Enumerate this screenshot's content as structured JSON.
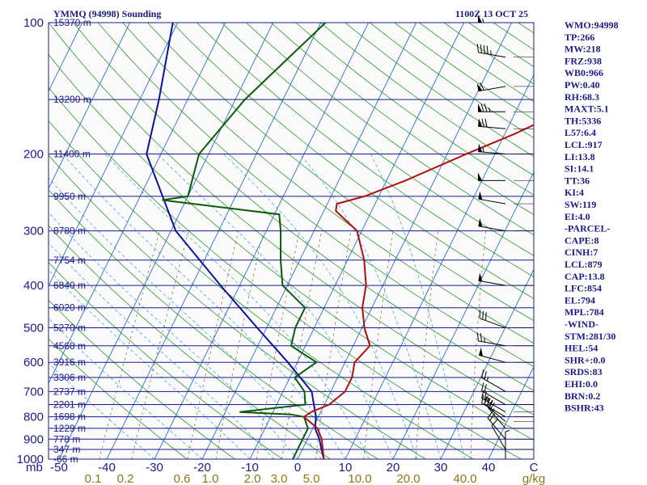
{
  "chart_data": {
    "type": "skew-t",
    "title_left": "YMMQ (94998) Sounding",
    "title_right": "1100Z 13 OCT 25",
    "pressure_unit_label": "mb",
    "pressure_levels": [
      100,
      200,
      300,
      400,
      500,
      600,
      700,
      800,
      900,
      1000
    ],
    "height_labels": [
      {
        "p": 100,
        "label": "15370 m"
      },
      {
        "p": 150,
        "label": "13200 m"
      },
      {
        "p": 200,
        "label": "11400 m"
      },
      {
        "p": 250,
        "label": "9950 m"
      },
      {
        "p": 300,
        "label": "8780 m"
      },
      {
        "p": 350,
        "label": "7754 m"
      },
      {
        "p": 400,
        "label": "6840 m"
      },
      {
        "p": 450,
        "label": "6020 m"
      },
      {
        "p": 500,
        "label": "5270 m"
      },
      {
        "p": 550,
        "label": "4568 m"
      },
      {
        "p": 600,
        "label": "3916 m"
      },
      {
        "p": 650,
        "label": "3306 m"
      },
      {
        "p": 700,
        "label": "2737 m"
      },
      {
        "p": 750,
        "label": "2201 m"
      },
      {
        "p": 800,
        "label": "1698 m"
      },
      {
        "p": 850,
        "label": "1229 m"
      },
      {
        "p": 900,
        "label": "778 m"
      },
      {
        "p": 950,
        "label": "347 m"
      },
      {
        "p": 1000,
        "label": "-66 m"
      }
    ],
    "temp_ticks": [
      -50,
      -40,
      -30,
      -20,
      -10,
      0,
      10,
      20,
      30,
      40
    ],
    "temp_tick_end_label": "C",
    "mixing_ratio_ticks": [
      "0.1",
      "0.2",
      "0.6",
      "1.0",
      "2.0",
      "3.0",
      "5.0",
      "10.0",
      "20.0",
      "40.0"
    ],
    "mixing_ratio_unit": "g/kg",
    "temperature_profile": [
      {
        "p": 100,
        "t": 50
      },
      {
        "p": 130,
        "t": 34
      },
      {
        "p": 150,
        "t": 24
      },
      {
        "p": 180,
        "t": 12
      },
      {
        "p": 200,
        "t": 4
      },
      {
        "p": 230,
        "t": -6
      },
      {
        "p": 250,
        "t": -13
      },
      {
        "p": 260,
        "t": -18
      },
      {
        "p": 270,
        "t": -17.5
      },
      {
        "p": 300,
        "t": -11
      },
      {
        "p": 350,
        "t": -6.5
      },
      {
        "p": 400,
        "t": -3.5
      },
      {
        "p": 450,
        "t": -2
      },
      {
        "p": 500,
        "t": 0.5
      },
      {
        "p": 550,
        "t": 3.5
      },
      {
        "p": 600,
        "t": 2
      },
      {
        "p": 650,
        "t": 3
      },
      {
        "p": 700,
        "t": 3
      },
      {
        "p": 750,
        "t": 1
      },
      {
        "p": 780,
        "t": -2
      },
      {
        "p": 800,
        "t": -3
      },
      {
        "p": 850,
        "t": 1
      },
      {
        "p": 900,
        "t": 3
      },
      {
        "p": 1000,
        "t": 5.5
      }
    ],
    "dewpoint_profile": [
      {
        "p": 100,
        "td": -39
      },
      {
        "p": 150,
        "td": -48
      },
      {
        "p": 200,
        "td": -52
      },
      {
        "p": 250,
        "td": -50
      },
      {
        "p": 255,
        "td": -55
      },
      {
        "p": 275,
        "td": -29
      },
      {
        "p": 300,
        "td": -27
      },
      {
        "p": 350,
        "td": -24
      },
      {
        "p": 400,
        "td": -21
      },
      {
        "p": 450,
        "td": -14
      },
      {
        "p": 500,
        "td": -14
      },
      {
        "p": 550,
        "td": -13
      },
      {
        "p": 600,
        "td": -6
      },
      {
        "p": 650,
        "td": -9
      },
      {
        "p": 700,
        "td": -5.5
      },
      {
        "p": 750,
        "td": -4
      },
      {
        "p": 780,
        "td": -17
      },
      {
        "p": 790,
        "td": -6
      },
      {
        "p": 800,
        "td": -3
      },
      {
        "p": 850,
        "td": -1
      },
      {
        "p": 900,
        "td": -1
      },
      {
        "p": 1000,
        "td": -1
      }
    ],
    "parcel_path": [
      {
        "p": 100,
        "t": -71
      },
      {
        "p": 150,
        "t": -66
      },
      {
        "p": 200,
        "t": -63
      },
      {
        "p": 300,
        "t": -49
      },
      {
        "p": 400,
        "t": -34
      },
      {
        "p": 500,
        "t": -22
      },
      {
        "p": 600,
        "t": -12
      },
      {
        "p": 700,
        "t": -4
      },
      {
        "p": 800,
        "t": -0.5
      },
      {
        "p": 850,
        "t": 0.5
      },
      {
        "p": 900,
        "t": 2.5
      },
      {
        "p": 950,
        "t": 4
      },
      {
        "p": 1000,
        "t": 5.5
      }
    ],
    "wind_barbs": [
      {
        "p": 100,
        "dir": 270,
        "spd": 55
      },
      {
        "p": 120,
        "dir": 280,
        "spd": 45
      },
      {
        "p": 140,
        "dir": 260,
        "spd": 60
      },
      {
        "p": 160,
        "dir": 270,
        "spd": 75
      },
      {
        "p": 175,
        "dir": 275,
        "spd": 70
      },
      {
        "p": 200,
        "dir": 275,
        "spd": 55
      },
      {
        "p": 230,
        "dir": 270,
        "spd": 50
      },
      {
        "p": 260,
        "dir": 280,
        "spd": 50
      },
      {
        "p": 300,
        "dir": 280,
        "spd": 50
      },
      {
        "p": 400,
        "dir": 280,
        "spd": 50
      },
      {
        "p": 500,
        "dir": 290,
        "spd": 30
      },
      {
        "p": 550,
        "dir": 280,
        "spd": 25
      },
      {
        "p": 600,
        "dir": 285,
        "spd": 50
      },
      {
        "p": 700,
        "dir": 300,
        "spd": 25
      },
      {
        "p": 750,
        "dir": 300,
        "spd": 20
      },
      {
        "p": 780,
        "dir": 300,
        "spd": 25
      },
      {
        "p": 800,
        "dir": 300,
        "spd": 30
      },
      {
        "p": 820,
        "dir": 310,
        "spd": 30
      },
      {
        "p": 850,
        "dir": 320,
        "spd": 25
      },
      {
        "p": 900,
        "dir": 320,
        "spd": 20
      },
      {
        "p": 950,
        "dir": 330,
        "spd": 10
      },
      {
        "p": 1000,
        "dir": 360,
        "spd": 5
      }
    ]
  },
  "indices": [
    "WMO:94998",
    "TP:266",
    "MW:218",
    "FRZ:938",
    "WB0:966",
    "PW:0.40",
    "RH:68.3",
    "MAXT:5.1",
    "TH:5336",
    "L57:6.4",
    "LCL:917",
    "LI:13.8",
    "SI:14.1",
    "TT:36",
    "KI:4",
    "SW:119",
    "EI:4.0",
    "-PARCEL-",
    "CAPE:8",
    "CINH:7",
    "LCL:879",
    "CAP:13.8",
    "LFC:854",
    "EL:794",
    "MPL:784",
    "-WIND-",
    "STM:281/30",
    "HEL:54",
    "SHR+:0.0",
    "SRDS:83",
    "EHI:0.0",
    "BRN:0.2",
    "BSHR:43"
  ],
  "colors": {
    "isobar": "#1a1a8c",
    "isotherm": "#2f6fd0",
    "dry_adiabat": "#2a9a2a",
    "moist_adiabat": "#5fb0e0",
    "mixing_ratio": "#7a6a20",
    "temperature": "#b01010",
    "dewpoint": "#0d5a0d",
    "parcel": "#1010a0",
    "text": "#1a1a8c"
  }
}
